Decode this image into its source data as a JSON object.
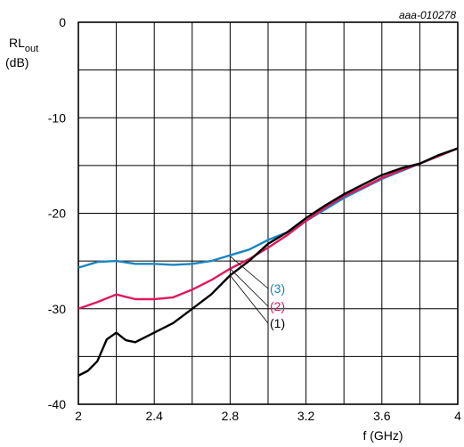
{
  "figure_id": "aaa-010278",
  "chart_data": {
    "type": "line",
    "ylabel_main": "RL",
    "ylabel_sub": "out",
    "ylabel_unit": "(dB)",
    "xlabel": "f (GHz)",
    "xlim": [
      2,
      4
    ],
    "ylim": [
      -40,
      0
    ],
    "grid": true,
    "x_ticks": [
      2,
      2.4,
      2.8,
      3.2,
      3.6,
      4
    ],
    "x_tick_labels": [
      "2",
      "2.4",
      "2.8",
      "3.2",
      "3.6",
      "4"
    ],
    "y_ticks": [
      0,
      -10,
      -20,
      -30,
      -40
    ],
    "y_tick_labels": [
      "0",
      "-10",
      "-20",
      "-30",
      "-40"
    ],
    "x_grid": [
      2,
      2.2,
      2.4,
      2.6,
      2.8,
      3.0,
      3.2,
      3.4,
      3.6,
      3.8,
      4
    ],
    "y_grid": [
      0,
      -5,
      -10,
      -15,
      -20,
      -25,
      -30,
      -35,
      -40
    ],
    "series": [
      {
        "name": "(1)",
        "color": "#000000",
        "label_point": [
          2.8,
          -26.5
        ],
        "x": [
          2.0,
          2.05,
          2.1,
          2.15,
          2.2,
          2.25,
          2.3,
          2.4,
          2.5,
          2.6,
          2.7,
          2.8,
          2.9,
          3.0,
          3.1,
          3.2,
          3.3,
          3.4,
          3.5,
          3.6,
          3.7,
          3.8,
          3.9,
          4.0
        ],
        "y": [
          -37.0,
          -36.5,
          -35.5,
          -33.2,
          -32.5,
          -33.3,
          -33.5,
          -32.5,
          -31.5,
          -30.0,
          -28.5,
          -26.5,
          -25.0,
          -23.2,
          -22.0,
          -20.5,
          -19.2,
          -18.0,
          -17.0,
          -16.0,
          -15.3,
          -14.8,
          -13.9,
          -13.2
        ]
      },
      {
        "name": "(2)",
        "color": "#e0185c",
        "label_point": [
          2.8,
          -25.8
        ],
        "x": [
          2.0,
          2.1,
          2.2,
          2.3,
          2.4,
          2.5,
          2.6,
          2.7,
          2.8,
          2.9,
          3.0,
          3.1,
          3.2,
          3.3,
          3.4,
          3.5,
          3.6,
          3.7,
          3.8,
          3.9,
          4.0
        ],
        "y": [
          -30.0,
          -29.3,
          -28.5,
          -29.0,
          -29.0,
          -28.8,
          -28.0,
          -27.0,
          -25.8,
          -24.8,
          -23.6,
          -22.3,
          -20.8,
          -19.4,
          -18.2,
          -17.3,
          -16.3,
          -15.5,
          -14.8,
          -14.0,
          -13.2
        ]
      },
      {
        "name": "(3)",
        "color": "#1a86c0",
        "label_point": [
          2.8,
          -24.5
        ],
        "x": [
          2.0,
          2.1,
          2.2,
          2.3,
          2.4,
          2.5,
          2.6,
          2.7,
          2.8,
          2.9,
          3.0,
          3.1,
          3.2,
          3.3,
          3.4,
          3.5,
          3.6,
          3.7,
          3.8,
          3.9,
          4.0
        ],
        "y": [
          -25.7,
          -25.1,
          -25.0,
          -25.3,
          -25.3,
          -25.4,
          -25.3,
          -25.0,
          -24.4,
          -23.8,
          -22.8,
          -22.0,
          -20.8,
          -19.6,
          -18.4,
          -17.4,
          -16.4,
          -15.6,
          -14.8,
          -14.0,
          -13.2
        ]
      }
    ]
  }
}
